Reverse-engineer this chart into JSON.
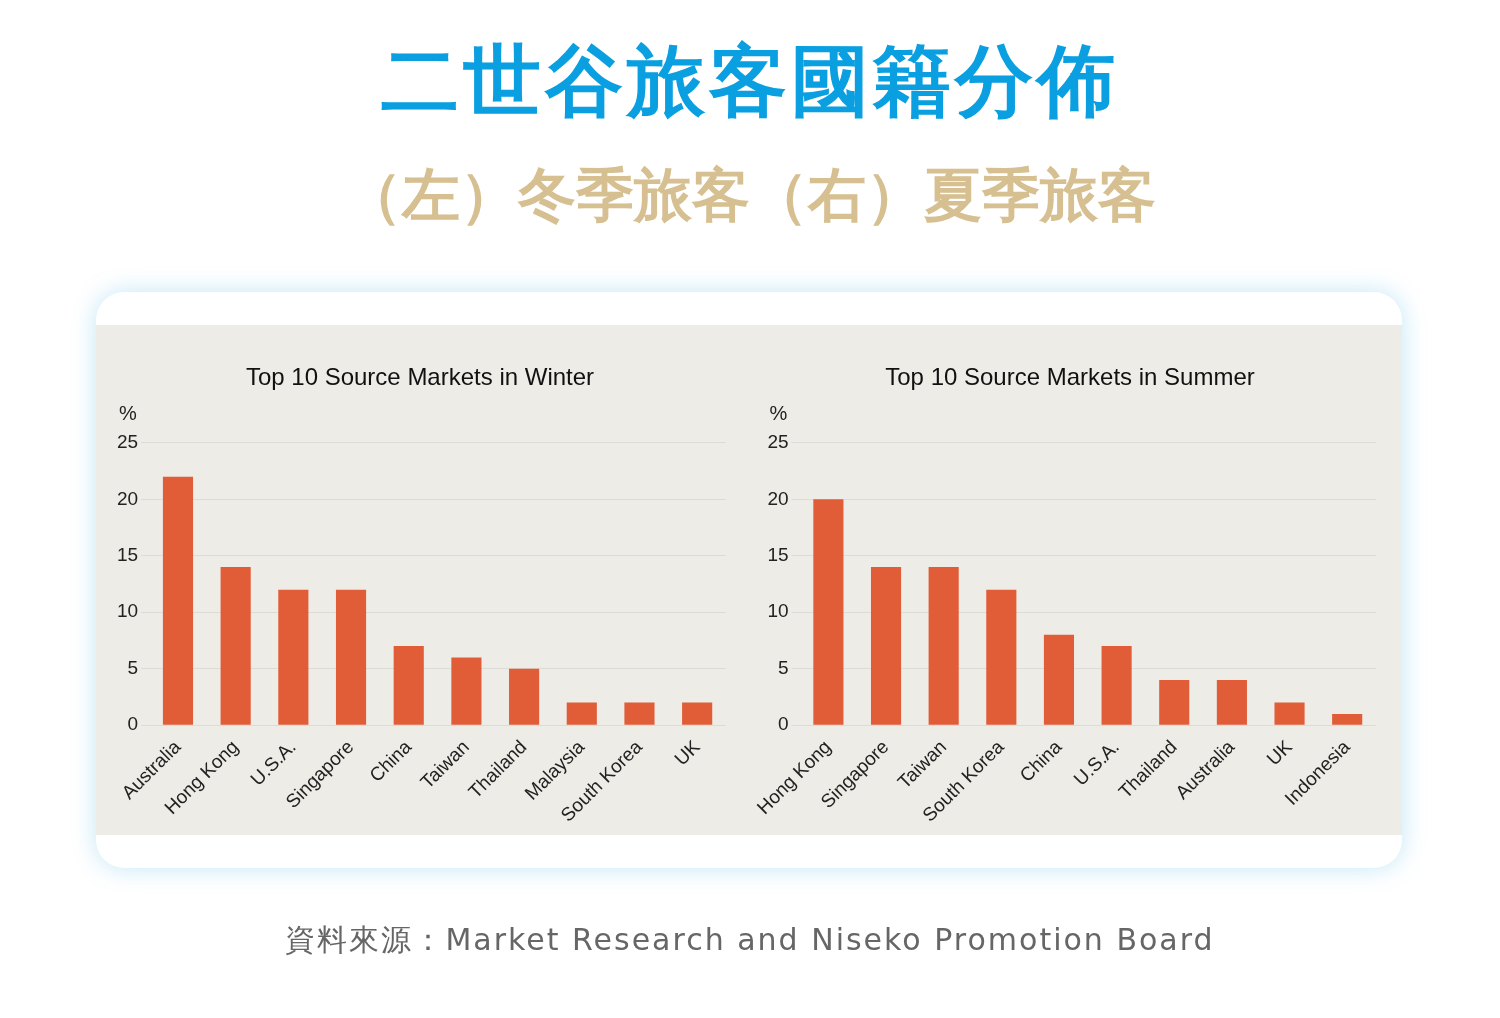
{
  "chart_data": [
    {
      "type": "other",
      "title": "二世谷旅客國籍分佈",
      "subtitle": "（左）冬季旅客（右）夏季旅客",
      "annotations": [
        "資料來源：Market Research and Niseko Promotion Board"
      ]
    },
    {
      "type": "bar",
      "title": "Top 10 Source Markets in Winter",
      "ylabel": "%",
      "categories": [
        "Australia",
        "Hong Kong",
        "U.S.A.",
        "Singapore",
        "China",
        "Taiwan",
        "Thailand",
        "Malaysia",
        "South Korea",
        "UK"
      ],
      "values": [
        22,
        14,
        12,
        12,
        7,
        6,
        5,
        2,
        2,
        2
      ],
      "color": "#e05d37",
      "ylim": [
        0,
        25
      ],
      "yticks": [
        0,
        5,
        10,
        15,
        20,
        25
      ],
      "grid": "y",
      "legend": false
    },
    {
      "type": "bar",
      "title": "Top 10 Source Markets in Summer",
      "ylabel": "%",
      "categories": [
        "Hong Kong",
        "Singapore",
        "Taiwan",
        "South Korea",
        "China",
        "U.S.A.",
        "Thailand",
        "Australia",
        "UK",
        "Indonesia"
      ],
      "values": [
        20,
        14,
        14,
        12,
        8,
        7,
        4,
        4,
        2,
        1
      ],
      "color": "#e05d37",
      "ylim": [
        0,
        25
      ],
      "yticks": [
        0,
        5,
        10,
        15,
        20,
        25
      ],
      "grid": "y",
      "legend": false
    }
  ]
}
